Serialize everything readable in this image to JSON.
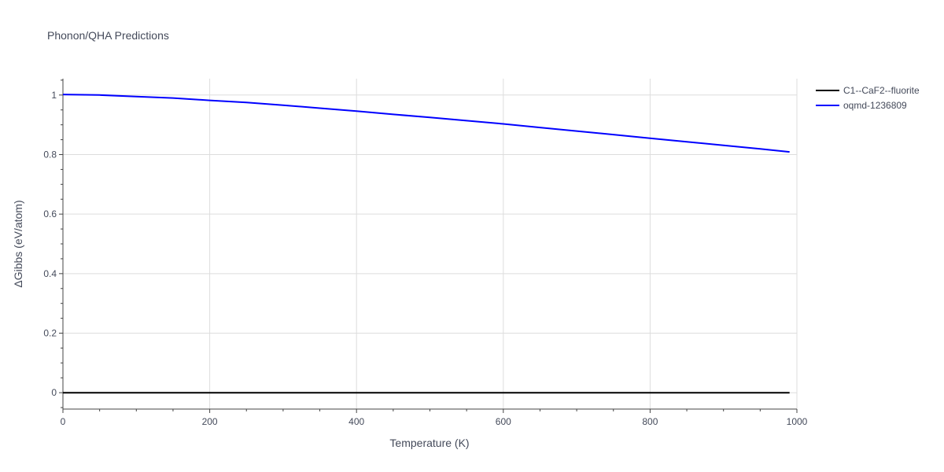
{
  "chart_data": {
    "type": "line",
    "title": "Phonon/QHA Predictions",
    "xlabel": "Temperature (K)",
    "ylabel": "ΔGibbs (eV/atom)",
    "xlim": [
      0,
      1000
    ],
    "ylim": [
      -0.055,
      1.055
    ],
    "x_ticks": [
      0,
      200,
      400,
      600,
      800,
      1000
    ],
    "y_ticks": [
      0,
      0.2,
      0.4,
      0.6,
      0.8,
      1
    ],
    "grid": true,
    "legend_position": "top-right",
    "series": [
      {
        "name": "C1--CaF2--fluorite",
        "color": "#000000",
        "x": [
          0,
          100,
          200,
          300,
          400,
          500,
          600,
          700,
          800,
          900,
          990
        ],
        "values": [
          0,
          0,
          0,
          0,
          0,
          0,
          0,
          0,
          0,
          0,
          0
        ]
      },
      {
        "name": "oqmd-1236809",
        "color": "#0000ff",
        "x": [
          0,
          50,
          100,
          150,
          200,
          250,
          300,
          350,
          400,
          450,
          500,
          550,
          600,
          650,
          700,
          750,
          800,
          850,
          900,
          950,
          990
        ],
        "values": [
          1.002,
          1.0,
          0.995,
          0.99,
          0.982,
          0.975,
          0.966,
          0.956,
          0.946,
          0.935,
          0.925,
          0.914,
          0.903,
          0.891,
          0.879,
          0.867,
          0.855,
          0.843,
          0.831,
          0.819,
          0.809
        ]
      }
    ]
  }
}
